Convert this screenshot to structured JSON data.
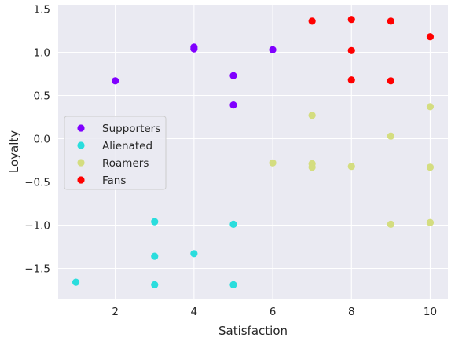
{
  "chart_data": {
    "type": "scatter",
    "title": "",
    "xlabel": "Satisfaction",
    "ylabel": "Loyalty",
    "xlim": [
      0.55,
      10.45
    ],
    "ylim": [
      -1.85,
      1.55
    ],
    "xticks": [
      2,
      4,
      6,
      8,
      10
    ],
    "yticks": [
      -1.5,
      -1.0,
      -0.5,
      0.0,
      0.5,
      1.0,
      1.5
    ],
    "xtick_labels": [
      "2",
      "4",
      "6",
      "8",
      "10"
    ],
    "ytick_labels": [
      "−1.5",
      "−1.0",
      "−0.5",
      "0.0",
      "0.5",
      "1.0",
      "1.5"
    ],
    "grid": true,
    "legend_position": "center-left",
    "colors": {
      "plot_background": "#eaeaf2",
      "grid": "#ffffff",
      "text": "#262626"
    },
    "series": [
      {
        "name": "Supporters",
        "color": "#8000ff",
        "points": [
          [
            2,
            0.67
          ],
          [
            4,
            1.06
          ],
          [
            4,
            1.04
          ],
          [
            5,
            0.73
          ],
          [
            5,
            0.39
          ],
          [
            6,
            1.03
          ]
        ]
      },
      {
        "name": "Alienated",
        "color": "#2adddd",
        "points": [
          [
            1,
            -1.66
          ],
          [
            3,
            -0.96
          ],
          [
            3,
            -1.36
          ],
          [
            3,
            -1.69
          ],
          [
            4,
            -1.33
          ],
          [
            5,
            -0.99
          ],
          [
            5,
            -1.69
          ]
        ]
      },
      {
        "name": "Roamers",
        "color": "#d4dd80",
        "points": [
          [
            6,
            -0.28
          ],
          [
            7,
            0.27
          ],
          [
            7,
            -0.29
          ],
          [
            7,
            -0.33
          ],
          [
            8,
            -0.32
          ],
          [
            9,
            0.03
          ],
          [
            9,
            -0.99
          ],
          [
            10,
            0.37
          ],
          [
            10,
            -0.33
          ],
          [
            10,
            -0.97
          ]
        ]
      },
      {
        "name": "Fans",
        "color": "#ff0000",
        "points": [
          [
            7,
            1.36
          ],
          [
            8,
            1.38
          ],
          [
            8,
            1.02
          ],
          [
            8,
            0.68
          ],
          [
            9,
            1.36
          ],
          [
            9,
            0.67
          ],
          [
            10,
            1.18
          ]
        ]
      }
    ]
  }
}
